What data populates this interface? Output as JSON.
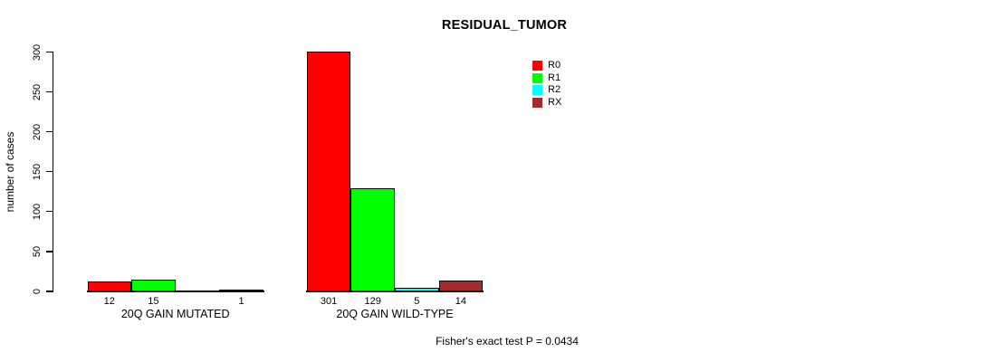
{
  "title": "RESIDUAL_TUMOR",
  "footer": "Fisher's exact test P = 0.0434",
  "chart_data": {
    "type": "bar",
    "title": "RESIDUAL_TUMOR",
    "xlabel": "",
    "ylabel": "number of cases",
    "ylim": [
      0,
      300
    ],
    "yticks": [
      0,
      50,
      100,
      150,
      200,
      250,
      300
    ],
    "grid": false,
    "legend_position": "top-right",
    "categories": [
      "20Q GAIN MUTATED",
      "20Q GAIN WILD-TYPE"
    ],
    "series": [
      {
        "name": "R0",
        "color": "#ff0000",
        "values": [
          12,
          301
        ]
      },
      {
        "name": "R1",
        "color": "#00ff00",
        "values": [
          15,
          129
        ]
      },
      {
        "name": "R2",
        "color": "#00ffff",
        "values": [
          0,
          5
        ]
      },
      {
        "name": "RX",
        "color": "#a52a2a",
        "values": [
          1,
          14
        ]
      }
    ],
    "bar_labels": [
      [
        "12",
        "15",
        "",
        "1"
      ],
      [
        "301",
        "129",
        "5",
        "14"
      ]
    ],
    "annotation": "Fisher's exact test P = 0.0434",
    "axis_color": "#000000",
    "background": "#ffffff"
  }
}
